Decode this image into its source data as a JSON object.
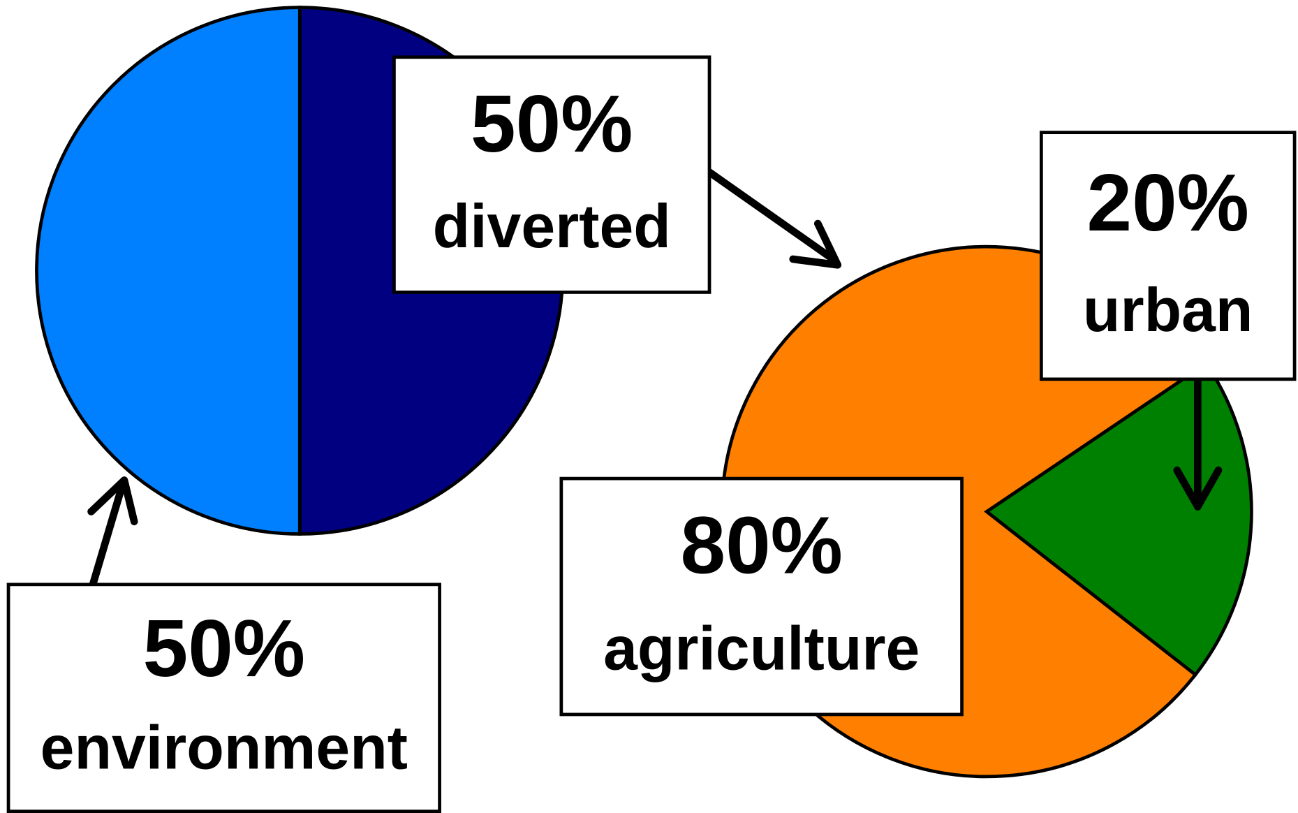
{
  "chart_data": [
    {
      "type": "pie",
      "categories": [
        "diverted",
        "environment"
      ],
      "values": [
        50,
        50
      ],
      "value_labels": [
        "50%",
        "50%"
      ],
      "colors": [
        "#000080",
        "#0080ff"
      ]
    },
    {
      "type": "pie",
      "categories": [
        "urban",
        "agriculture"
      ],
      "values": [
        20,
        80
      ],
      "value_labels": [
        "20%",
        "80%"
      ],
      "colors": [
        "#008000",
        "#ff8000"
      ]
    }
  ]
}
